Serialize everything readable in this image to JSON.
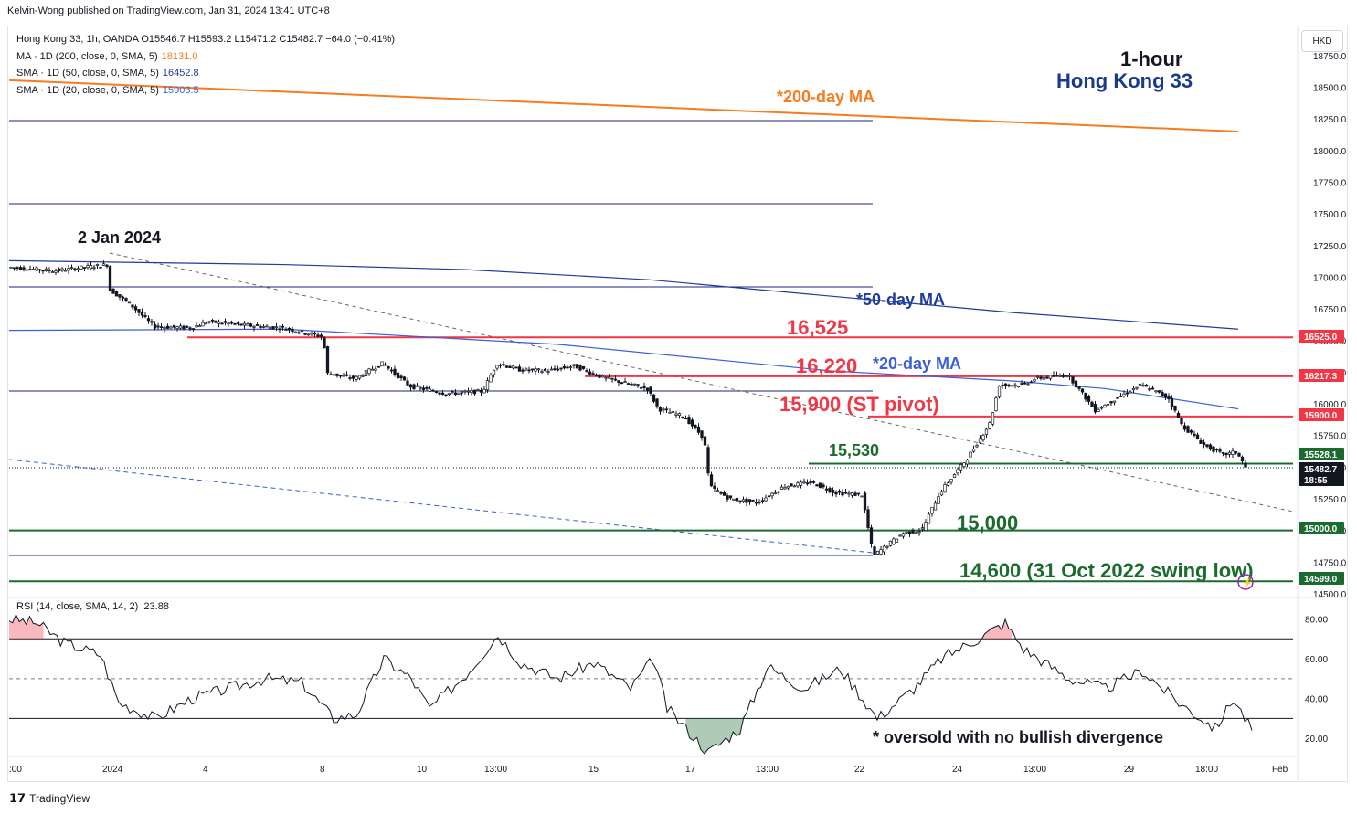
{
  "header": {
    "publisher": "Kelvin-Wong published on TradingView.com, Jan 31, 2024 13:41 UTC+8"
  },
  "legend": {
    "symbol_line": "Hong Kong 33, 1h, OANDA  O15546.7  H15593.2  L15471.2  C15482.7  −64.0 (−0.41%)",
    "ma200_label": "MA · 1D (200, close, 0, SMA, 5)",
    "ma200_value": "18131.0",
    "sma50_label": "SMA · 1D (50, close, 0, SMA, 5)",
    "sma50_value": "16452.8",
    "sma20_label": "SMA · 1D (20, close, 0, SMA, 5)",
    "sma20_value": "15903.5",
    "rsi_label": "RSI (14, close, SMA, 14, 2)",
    "rsi_value": "23.88"
  },
  "currency": "HKD",
  "titles": {
    "timeframe": "1-hour",
    "instrument": "Hong Kong 33"
  },
  "footer": {
    "brand": "TradingView"
  },
  "colors": {
    "ma200": "#f57c1f",
    "sma50": "#1f3b9b",
    "sma20": "#3a5fd8",
    "resistance": "#f23645",
    "support": "#1b6b2f",
    "navy": "#1a237e",
    "candle": "#131722"
  },
  "chart_data": {
    "type": "line",
    "price_axis": {
      "ylim": [
        14500,
        18900
      ],
      "ticks": [
        "18750.0",
        "18500.0",
        "18250.0",
        "18000.0",
        "17750.0",
        "17500.0",
        "17250.0",
        "17000.0",
        "16750.0",
        "16500.0",
        "16250.0",
        "16000.0",
        "15750.0",
        "15500.0",
        "15250.0",
        "15000.0",
        "14750.0",
        "14500.0"
      ]
    },
    "rsi_axis": {
      "ylim": [
        10,
        88
      ],
      "ticks": [
        "80.00",
        "60.00",
        "40.00",
        "20.00"
      ],
      "overbought": 70,
      "mid": 50,
      "oversold": 30
    },
    "time_axis": [
      ":00",
      "2024",
      "4",
      "8",
      "10",
      "13:00",
      "15",
      "17",
      "13:00",
      "22",
      "24",
      "13:00",
      "29",
      "18:00",
      "Feb"
    ],
    "price_labels": [
      {
        "text": "16525.0",
        "value": 16525,
        "color": "#f23645"
      },
      {
        "text": "16217.3",
        "value": 16217.3,
        "color": "#f23645"
      },
      {
        "text": "15900.0",
        "value": 15900,
        "color": "#f23645"
      },
      {
        "text": "15528.1",
        "value": 15528.1,
        "color": "#1b6b2f"
      },
      {
        "text": "15482.7",
        "value": 15482.7,
        "color": "#131722"
      },
      {
        "text": "18:55",
        "value": 15420,
        "color": "#131722"
      },
      {
        "text": "15000.0",
        "value": 15000,
        "color": "#1b6b2f"
      },
      {
        "text": "14599.0",
        "value": 14599,
        "color": "#1b6b2f"
      }
    ],
    "horizontal_levels": [
      {
        "value": 16525,
        "color": "#f23645"
      },
      {
        "value": 16217.3,
        "color": "#f23645"
      },
      {
        "value": 15900,
        "color": "#f23645"
      },
      {
        "value": 15528.1,
        "color": "#1b6b2f"
      },
      {
        "value": 15000,
        "color": "#1b6b2f"
      },
      {
        "value": 14599,
        "color": "#1b6b2f"
      }
    ],
    "annotations": [
      "*200-day MA",
      "2 Jan 2024",
      "*50-day MA",
      "16,525",
      "16,220",
      "*20-day MA",
      "15,900 (ST pivot)",
      "15,530",
      "15,000",
      "14,600 (31 Oct 2022 swing low)",
      "* oversold with no bullish divergence"
    ],
    "series": [
      {
        "name": "MA · 1D (200, close, 0, SMA, 5)",
        "values": [
          [
            0,
            18555
          ],
          [
            1345,
            18150
          ]
        ]
      },
      {
        "name": "SMA · 1D (50, close, 0, SMA, 5)",
        "values": [
          [
            0,
            17130
          ],
          [
            300,
            17100
          ],
          [
            500,
            17060
          ],
          [
            700,
            16980
          ],
          [
            900,
            16850
          ],
          [
            1100,
            16720
          ],
          [
            1345,
            16590
          ]
        ]
      },
      {
        "name": "SMA · 1D (20, close, 0, SMA, 5)",
        "values": [
          [
            0,
            16580
          ],
          [
            300,
            16590
          ],
          [
            600,
            16470
          ],
          [
            800,
            16330
          ],
          [
            900,
            16260
          ],
          [
            1100,
            16180
          ],
          [
            1200,
            16120
          ],
          [
            1345,
            15960
          ]
        ]
      },
      {
        "name": "Hong Kong 33, 1h, OANDA",
        "values": [
          [
            0,
            17080
          ],
          [
            50,
            17050
          ],
          [
            110,
            17100
          ],
          [
            112,
            16900
          ],
          [
            135,
            16780
          ],
          [
            160,
            16610
          ],
          [
            200,
            16600
          ],
          [
            220,
            16650
          ],
          [
            260,
            16620
          ],
          [
            300,
            16600
          ],
          [
            345,
            16530
          ],
          [
            350,
            16240
          ],
          [
            380,
            16200
          ],
          [
            410,
            16320
          ],
          [
            440,
            16140
          ],
          [
            480,
            16080
          ],
          [
            520,
            16100
          ],
          [
            535,
            16320
          ],
          [
            560,
            16270
          ],
          [
            590,
            16260
          ],
          [
            620,
            16300
          ],
          [
            650,
            16210
          ],
          [
            700,
            16120
          ],
          [
            712,
            15960
          ],
          [
            740,
            15900
          ],
          [
            762,
            15730
          ],
          [
            768,
            15350
          ],
          [
            790,
            15250
          ],
          [
            820,
            15220
          ],
          [
            850,
            15350
          ],
          [
            880,
            15380
          ],
          [
            905,
            15300
          ],
          [
            935,
            15280
          ],
          [
            947,
            14800
          ],
          [
            980,
            14980
          ],
          [
            1000,
            15000
          ],
          [
            1020,
            15300
          ],
          [
            1050,
            15570
          ],
          [
            1075,
            15850
          ],
          [
            1085,
            16150
          ],
          [
            1110,
            16150
          ],
          [
            1125,
            16200
          ],
          [
            1160,
            16230
          ],
          [
            1190,
            15950
          ],
          [
            1215,
            16050
          ],
          [
            1240,
            16150
          ],
          [
            1270,
            16050
          ],
          [
            1285,
            15830
          ],
          [
            1310,
            15670
          ],
          [
            1330,
            15600
          ],
          [
            1345,
            15620
          ],
          [
            1356,
            15480
          ]
        ]
      },
      {
        "name": "RSI (14, close, SMA, 14, 2)",
        "values": [
          [
            0,
            80
          ],
          [
            30,
            78
          ],
          [
            60,
            68
          ],
          [
            100,
            62
          ],
          [
            120,
            38
          ],
          [
            160,
            30
          ],
          [
            200,
            40
          ],
          [
            240,
            45
          ],
          [
            280,
            50
          ],
          [
            320,
            48
          ],
          [
            355,
            30
          ],
          [
            380,
            32
          ],
          [
            410,
            60
          ],
          [
            440,
            50
          ],
          [
            460,
            35
          ],
          [
            500,
            52
          ],
          [
            535,
            72
          ],
          [
            560,
            58
          ],
          [
            600,
            50
          ],
          [
            640,
            58
          ],
          [
            680,
            45
          ],
          [
            705,
            60
          ],
          [
            720,
            35
          ],
          [
            765,
            13
          ],
          [
            800,
            25
          ],
          [
            830,
            56
          ],
          [
            870,
            45
          ],
          [
            910,
            55
          ],
          [
            950,
            30
          ],
          [
            990,
            45
          ],
          [
            1020,
            60
          ],
          [
            1060,
            70
          ],
          [
            1090,
            78
          ],
          [
            1110,
            65
          ],
          [
            1160,
            50
          ],
          [
            1200,
            45
          ],
          [
            1240,
            54
          ],
          [
            1280,
            38
          ],
          [
            1320,
            25
          ],
          [
            1340,
            40
          ],
          [
            1360,
            24
          ]
        ]
      }
    ]
  }
}
